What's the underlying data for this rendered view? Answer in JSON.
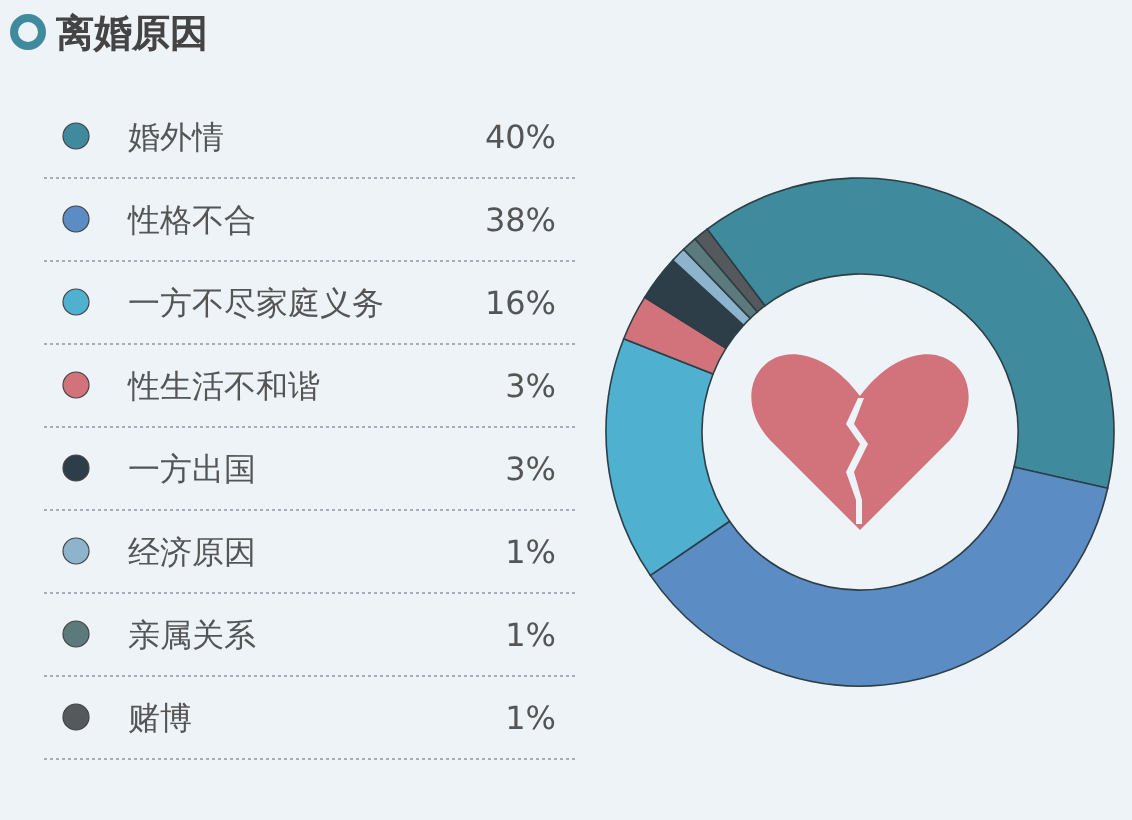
{
  "chart_data": {
    "type": "donut",
    "title": "离婚原因",
    "categories": [
      "婚外情",
      "性格不合",
      "一方不尽家庭义务",
      "性生活不和谐",
      "一方出国",
      "经济原因",
      "亲属关系",
      "赌博"
    ],
    "values": [
      40,
      38,
      16,
      3,
      3,
      1,
      1,
      1
    ],
    "colors": [
      "#3f8a9c",
      "#5b8cc4",
      "#4fb0cf",
      "#d2727a",
      "#2e3e48",
      "#8db4cc",
      "#5c7a7c",
      "#55595c"
    ],
    "value_labels": [
      "40%",
      "38%",
      "16%",
      "3%",
      "3%",
      "1%",
      "1%",
      "1%"
    ],
    "legend": "left"
  }
}
